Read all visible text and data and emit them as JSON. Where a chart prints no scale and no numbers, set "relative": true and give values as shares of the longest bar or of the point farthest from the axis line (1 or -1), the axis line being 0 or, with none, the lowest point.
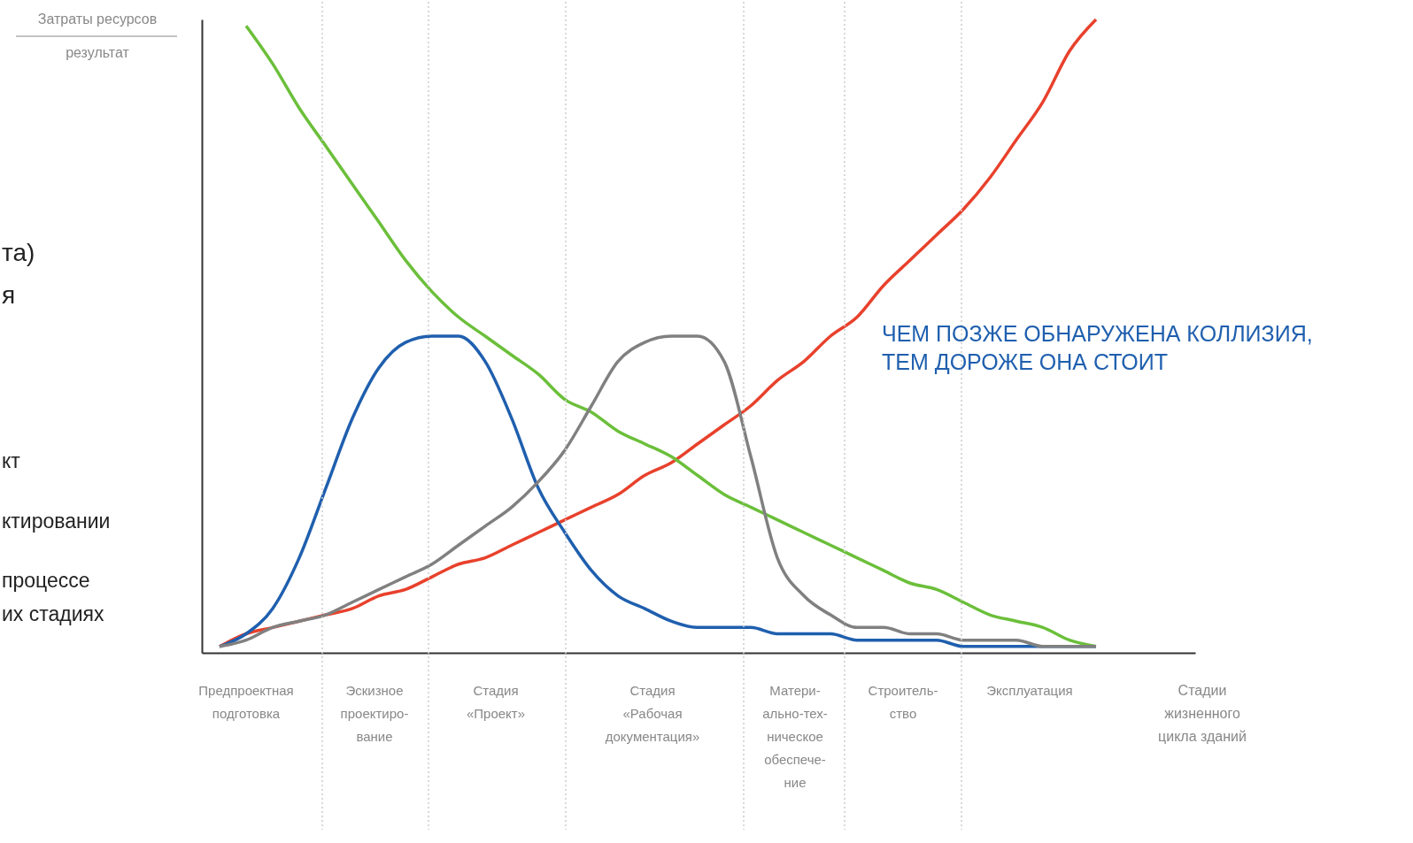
{
  "chart_data": {
    "type": "line",
    "relative": true,
    "ylabel": "Затраты ресурсов",
    "xlabel": "Стадии\nжизненного\nцикла зданий",
    "categories": [
      null,
      null,
      null,
      null,
      null,
      null,
      null,
      null,
      null,
      null,
      null,
      null,
      null,
      null,
      null,
      null,
      null,
      null,
      null,
      null,
      null,
      null,
      null,
      null,
      null,
      null,
      null,
      null,
      null,
      null,
      null,
      null,
      null,
      null
    ],
    "grid": "x",
    "marker": "none",
    "line_style": "solid",
    "annotations": [
      "результат",
      "ЧЕМ ПОЗЖЕ ОБНАРУЖЕНА КОЛЛИЗИЯ,\nТЕМ ДОРОЖЕ ОНА СТОИТ",
      "Предпроектная\nподготовка",
      "Эскизное\nпроектиро-\nвание",
      "Стадия\n«Проект»",
      "Стадия\n«Рабочая\nдокументация»",
      "Матери-\nально-тех-\nническое\nобеспече-\nние",
      "Строитель-\nство",
      "Эксплуатация",
      "та)",
      "я",
      "кт",
      "ктировании",
      "процессе",
      "их стадиях"
    ],
    "series": [
      {
        "color": "#e8412c",
        "values": [
          0.01,
          0.03,
          0.04,
          0.05,
          0.06,
          0.07,
          0.09,
          0.1,
          0.12,
          0.14,
          0.15,
          0.17,
          0.19,
          0.21,
          0.23,
          0.25,
          0.28,
          0.3,
          0.33,
          0.36,
          0.39,
          0.43,
          0.46,
          0.5,
          0.53,
          0.58,
          0.62,
          0.66,
          0.7,
          0.75,
          0.81,
          0.87,
          0.95,
          1.0
        ]
      },
      {
        "color": "#6bbf3a",
        "values": [
          null,
          0.99,
          0.93,
          0.86,
          0.8,
          0.74,
          0.68,
          0.62,
          0.57,
          0.53,
          0.5,
          0.47,
          0.44,
          0.4,
          0.38,
          0.35,
          0.33,
          0.31,
          0.28,
          0.25,
          0.23,
          0.21,
          0.19,
          0.17,
          0.15,
          0.13,
          0.11,
          0.1,
          0.08,
          0.06,
          0.05,
          0.04,
          0.02,
          0.01
        ]
      },
      {
        "color": "#1f5fae",
        "values": [
          0.01,
          0.03,
          0.07,
          0.15,
          0.26,
          0.37,
          0.45,
          0.49,
          0.5,
          0.5,
          0.46,
          0.37,
          0.26,
          0.19,
          0.13,
          0.09,
          0.07,
          0.05,
          0.04,
          0.04,
          0.04,
          0.03,
          0.03,
          0.03,
          0.02,
          0.02,
          0.02,
          0.02,
          0.01,
          0.01,
          0.01,
          0.01,
          0.01,
          0.01
        ]
      },
      {
        "color": "#808080",
        "values": [
          0.01,
          0.02,
          0.04,
          0.05,
          0.06,
          0.08,
          0.1,
          0.12,
          0.14,
          0.17,
          0.2,
          0.23,
          0.27,
          0.32,
          0.39,
          0.46,
          0.49,
          0.5,
          0.5,
          0.46,
          0.31,
          0.15,
          0.09,
          0.06,
          0.04,
          0.04,
          0.03,
          0.03,
          0.02,
          0.02,
          0.02,
          0.01,
          0.01,
          0.01
        ]
      }
    ]
  }
}
